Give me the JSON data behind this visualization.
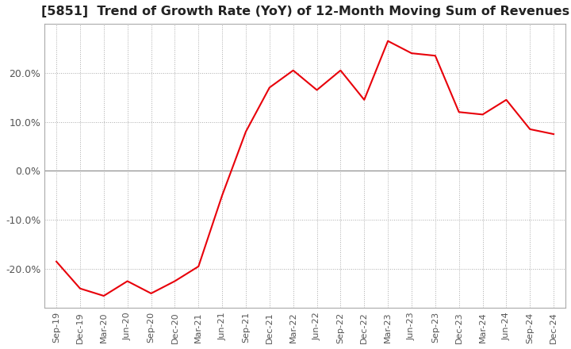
{
  "title": "[5851]  Trend of Growth Rate (YoY) of 12-Month Moving Sum of Revenues",
  "title_fontsize": 11.5,
  "line_color": "#e8000a",
  "background_color": "#ffffff",
  "grid_color": "#aaaaaa",
  "x_labels": [
    "Sep-19",
    "Dec-19",
    "Mar-20",
    "Jun-20",
    "Sep-20",
    "Dec-20",
    "Mar-21",
    "Jun-21",
    "Sep-21",
    "Dec-21",
    "Mar-22",
    "Jun-22",
    "Sep-22",
    "Dec-22",
    "Mar-23",
    "Jun-23",
    "Sep-23",
    "Dec-23",
    "Mar-24",
    "Jun-24",
    "Sep-24",
    "Dec-24"
  ],
  "y_values": [
    -18.5,
    -24.0,
    -25.5,
    -22.5,
    -25.0,
    -22.5,
    -19.5,
    -5.0,
    8.0,
    17.0,
    20.5,
    16.5,
    20.5,
    14.5,
    26.5,
    24.0,
    23.5,
    12.0,
    11.5,
    14.5,
    8.5,
    7.5
  ],
  "ylim": [
    -28,
    30
  ],
  "yticks": [
    -20.0,
    -10.0,
    0.0,
    10.0,
    20.0
  ],
  "ylabel_fontsize": 9,
  "xlabel_fontsize": 8
}
